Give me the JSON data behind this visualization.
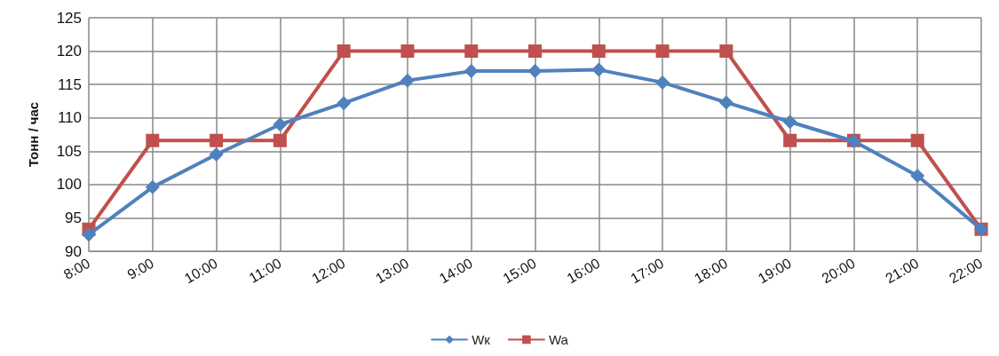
{
  "chart_data": {
    "type": "line",
    "ylabel": "Тонн / час",
    "categories": [
      "8:00",
      "9:00",
      "10:00",
      "11:00",
      "12:00",
      "13:00",
      "14:00",
      "15:00",
      "16:00",
      "17:00",
      "18:00",
      "19:00",
      "20:00",
      "21:00",
      "22:00"
    ],
    "series": [
      {
        "name": "Wк",
        "color": "#4f81bd",
        "marker": "diamond",
        "values": [
          92.5,
          99.6,
          104.5,
          109,
          112.2,
          115.6,
          117,
          117,
          117.2,
          115.3,
          112.3,
          109.4,
          106.5,
          101.3,
          93.3
        ]
      },
      {
        "name": "Wa",
        "color": "#c0504d",
        "marker": "square",
        "values": [
          93.3,
          106.6,
          106.6,
          106.6,
          120,
          120,
          120,
          120,
          120,
          120,
          120,
          106.6,
          106.6,
          106.6,
          93.3
        ]
      }
    ],
    "ylim": [
      90,
      125
    ],
    "yticks": [
      90,
      95,
      100,
      105,
      110,
      115,
      120,
      125
    ],
    "grid": true,
    "legend": "bottom",
    "line_style": "solid"
  }
}
